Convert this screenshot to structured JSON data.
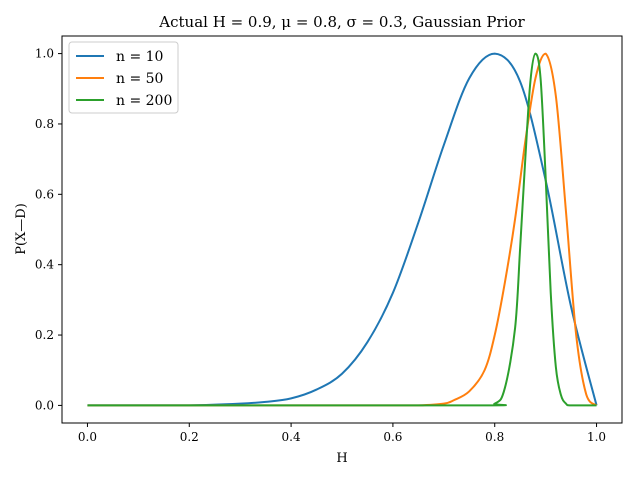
{
  "chart_data": {
    "type": "line",
    "title": "Actual H = 0.9, μ = 0.8, σ = 0.3, Gaussian Prior",
    "xlabel": "H",
    "ylabel": "P(X—D)",
    "xlim": [
      -0.05,
      1.05
    ],
    "ylim": [
      -0.05,
      1.05
    ],
    "xticks": [
      0.0,
      0.2,
      0.4,
      0.6,
      0.8,
      1.0
    ],
    "xtick_labels": [
      "0.0",
      "0.2",
      "0.4",
      "0.6",
      "0.8",
      "1.0"
    ],
    "yticks": [
      0.0,
      0.2,
      0.4,
      0.6,
      0.8,
      1.0
    ],
    "ytick_labels": [
      "0.0",
      "0.2",
      "0.4",
      "0.6",
      "0.8",
      "1.0"
    ],
    "grid": false,
    "legend_position": "top-left",
    "series": [
      {
        "name": "n = 10",
        "color": "#1f77b4",
        "x": [
          0.0,
          0.1,
          0.2,
          0.3,
          0.35,
          0.4,
          0.45,
          0.5,
          0.55,
          0.6,
          0.65,
          0.7,
          0.75,
          0.8,
          0.85,
          0.9,
          0.95,
          1.0
        ],
        "y": [
          0.0,
          0.0,
          0.0,
          0.005,
          0.01,
          0.02,
          0.045,
          0.09,
          0.18,
          0.32,
          0.52,
          0.74,
          0.93,
          1.0,
          0.92,
          0.64,
          0.28,
          0.0
        ]
      },
      {
        "name": "n = 50",
        "color": "#ff7f0e",
        "x": [
          0.0,
          0.6,
          0.65,
          0.7,
          0.72,
          0.75,
          0.78,
          0.8,
          0.82,
          0.84,
          0.86,
          0.88,
          0.9,
          0.92,
          0.94,
          0.96,
          0.98,
          1.0
        ],
        "y": [
          0.0,
          0.0,
          0.0,
          0.005,
          0.015,
          0.04,
          0.1,
          0.2,
          0.35,
          0.53,
          0.75,
          0.93,
          1.0,
          0.88,
          0.55,
          0.2,
          0.03,
          0.0
        ]
      },
      {
        "name": "n = 200",
        "color": "#2ca02c",
        "x": [
          0.0,
          0.75,
          0.8,
          0.82,
          0.84,
          0.85,
          0.86,
          0.87,
          0.88,
          0.89,
          0.9,
          0.91,
          0.92,
          0.93,
          0.94,
          0.95,
          1.0
        ],
        "y": [
          0.0,
          0.0,
          0.005,
          0.05,
          0.22,
          0.45,
          0.7,
          0.92,
          1.0,
          0.93,
          0.65,
          0.32,
          0.11,
          0.03,
          0.005,
          0.0,
          0.0
        ]
      }
    ]
  }
}
